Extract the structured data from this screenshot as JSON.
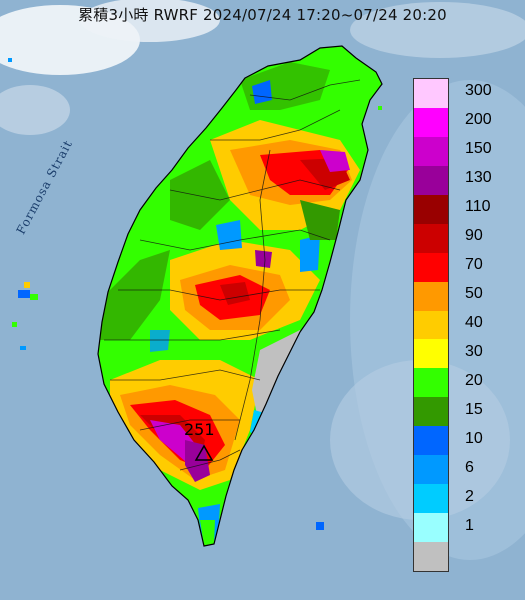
{
  "title": "累積3小時 RWRF 2024/07/24 17:20~07/24 20:20",
  "strait_label": "Formosa Strait",
  "max_value_label": "251",
  "legend": {
    "levels": [
      {
        "label": "300",
        "color": "#ffc8ff"
      },
      {
        "label": "200",
        "color": "#ff00ff"
      },
      {
        "label": "150",
        "color": "#cc00cc"
      },
      {
        "label": "130",
        "color": "#99009a"
      },
      {
        "label": "110",
        "color": "#990000"
      },
      {
        "label": "90",
        "color": "#cc0000"
      },
      {
        "label": "70",
        "color": "#ff0000"
      },
      {
        "label": "50",
        "color": "#ff9900"
      },
      {
        "label": "40",
        "color": "#ffcc00"
      },
      {
        "label": "30",
        "color": "#ffff00"
      },
      {
        "label": "20",
        "color": "#33ff00"
      },
      {
        "label": "15",
        "color": "#339900"
      },
      {
        "label": "10",
        "color": "#0066ff"
      },
      {
        "label": "6",
        "color": "#0099ff"
      },
      {
        "label": "2",
        "color": "#00ccff"
      },
      {
        "label": "1",
        "color": "#99ffff"
      },
      {
        "label": "",
        "color": "#c0c0c0"
      }
    ]
  }
}
